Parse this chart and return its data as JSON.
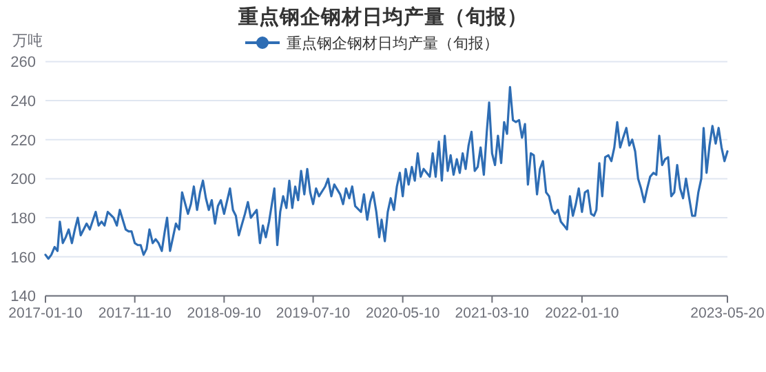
{
  "chart_data": {
    "type": "line",
    "title": "重点钢企钢材日均产量（旬报）",
    "ylabel": "万吨",
    "legend": "top",
    "grid": "y",
    "xlim": [
      "2017-01-10",
      "2023-05-20"
    ],
    "ylim": [
      140,
      260
    ],
    "yticks": [
      140,
      160,
      180,
      200,
      220,
      240,
      260
    ],
    "xticks": [
      "2017-01-10",
      "2017-11-10",
      "2018-09-10",
      "2019-07-10",
      "2020-05-10",
      "2021-03-10",
      "2022-01-10",
      "2023-05-20"
    ],
    "x": [
      "2017-01-10",
      "2017-01-20",
      "2017-01-30",
      "2017-02-10",
      "2017-02-20",
      "2017-02-28",
      "2017-03-10",
      "2017-03-20",
      "2017-03-30",
      "2017-04-10",
      "2017-04-20",
      "2017-04-30",
      "2017-05-10",
      "2017-05-20",
      "2017-05-30",
      "2017-06-10",
      "2017-06-30",
      "2017-07-10",
      "2017-07-20",
      "2017-07-30",
      "2017-08-10",
      "2017-08-30",
      "2017-09-10",
      "2017-09-20",
      "2017-10-10",
      "2017-10-20",
      "2017-10-30",
      "2017-11-10",
      "2017-11-20",
      "2017-11-30",
      "2017-12-10",
      "2017-12-20",
      "2017-12-30",
      "2018-01-10",
      "2018-01-20",
      "2018-01-30",
      "2018-02-10",
      "2018-02-20",
      "2018-02-28",
      "2018-03-10",
      "2018-03-20",
      "2018-03-30",
      "2018-04-10",
      "2018-04-20",
      "2018-05-10",
      "2018-05-20",
      "2018-05-30",
      "2018-06-10",
      "2018-06-20",
      "2018-06-30",
      "2018-07-10",
      "2018-07-20",
      "2018-07-30",
      "2018-08-10",
      "2018-08-20",
      "2018-08-30",
      "2018-09-10",
      "2018-09-30",
      "2018-10-10",
      "2018-10-20",
      "2018-10-30",
      "2018-11-20",
      "2018-11-30",
      "2018-12-10",
      "2018-12-30",
      "2019-01-10",
      "2019-01-20",
      "2019-01-30",
      "2019-02-10",
      "2019-02-28",
      "2019-03-10",
      "2019-03-20",
      "2019-03-30",
      "2019-04-10",
      "2019-04-20",
      "2019-04-30",
      "2019-05-10",
      "2019-05-20",
      "2019-05-30",
      "2019-06-10",
      "2019-06-20",
      "2019-06-30",
      "2019-07-10",
      "2019-07-20",
      "2019-07-30",
      "2019-08-20",
      "2019-08-30",
      "2019-09-10",
      "2019-09-20",
      "2019-10-10",
      "2019-10-20",
      "2019-10-30",
      "2019-11-10",
      "2019-11-20",
      "2019-11-30",
      "2019-12-20",
      "2019-12-30",
      "2020-01-10",
      "2020-01-20",
      "2020-01-30",
      "2020-02-10",
      "2020-02-20",
      "2020-02-28",
      "2020-03-10",
      "2020-03-20",
      "2020-03-30",
      "2020-04-10",
      "2020-04-20",
      "2020-04-30",
      "2020-05-10",
      "2020-05-20",
      "2020-05-30",
      "2020-06-10",
      "2020-06-20",
      "2020-06-30",
      "2020-07-10",
      "2020-07-20",
      "2020-08-10",
      "2020-08-20",
      "2020-08-30",
      "2020-09-10",
      "2020-09-20",
      "2020-09-30",
      "2020-10-10",
      "2020-10-20",
      "2020-10-30",
      "2020-11-10",
      "2020-11-20",
      "2020-11-30",
      "2020-12-10",
      "2020-12-20",
      "2020-12-30",
      "2021-01-10",
      "2021-01-20",
      "2021-01-30",
      "2021-02-10",
      "2021-02-20",
      "2021-02-28",
      "2021-03-10",
      "2021-03-20",
      "2021-03-30",
      "2021-04-10",
      "2021-04-20",
      "2021-04-30",
      "2021-05-10",
      "2021-05-20",
      "2021-05-30",
      "2021-06-10",
      "2021-06-20",
      "2021-06-30",
      "2021-07-10",
      "2021-07-20",
      "2021-07-30",
      "2021-08-10",
      "2021-08-20",
      "2021-08-30",
      "2021-09-10",
      "2021-09-20",
      "2021-09-30",
      "2021-10-10",
      "2021-10-20",
      "2021-10-30",
      "2021-11-10",
      "2021-11-20",
      "2021-11-30",
      "2021-12-10",
      "2021-12-20",
      "2021-12-30",
      "2022-01-10",
      "2022-01-20",
      "2022-01-30",
      "2022-02-10",
      "2022-02-20",
      "2022-02-28",
      "2022-03-10",
      "2022-03-20",
      "2022-03-30",
      "2022-04-10",
      "2022-04-20",
      "2022-04-30",
      "2022-05-10",
      "2022-05-20",
      "2022-05-30",
      "2022-06-10",
      "2022-06-20",
      "2022-06-30",
      "2022-07-10",
      "2022-07-20",
      "2022-07-30",
      "2022-08-10",
      "2022-08-20",
      "2022-08-30",
      "2022-09-10",
      "2022-09-20",
      "2022-09-30",
      "2022-10-10",
      "2022-10-20",
      "2022-10-30",
      "2022-11-10",
      "2022-11-20",
      "2022-11-30",
      "2022-12-10",
      "2022-12-20",
      "2022-12-30",
      "2023-01-10",
      "2023-01-20",
      "2023-01-30",
      "2023-02-10",
      "2023-02-20",
      "2023-02-28",
      "2023-03-10",
      "2023-03-20",
      "2023-03-30",
      "2023-04-10",
      "2023-04-20",
      "2023-04-30",
      "2023-05-10",
      "2023-05-20"
    ],
    "series": [
      {
        "name": "重点钢企钢材日均产量（旬报）",
        "color": "#2e6db4",
        "values": [
          161,
          159,
          161,
          165,
          163,
          178,
          167,
          170,
          174,
          167,
          174,
          180,
          171,
          174,
          177,
          174,
          183,
          176,
          178,
          176,
          183,
          180,
          176,
          184,
          174,
          173,
          173,
          167,
          166,
          166,
          161,
          164,
          174,
          167,
          169,
          167,
          163,
          173,
          180,
          163,
          170,
          177,
          174,
          193,
          182,
          187,
          196,
          184,
          193,
          199,
          190,
          184,
          189,
          177,
          186,
          189,
          182,
          195,
          184,
          181,
          171,
          182,
          188,
          180,
          184,
          167,
          176,
          170,
          178,
          195,
          166,
          183,
          191,
          185,
          199,
          185,
          196,
          189,
          204,
          192,
          205,
          193,
          187,
          195,
          191,
          196,
          200,
          191,
          197,
          192,
          187,
          195,
          190,
          196,
          186,
          183,
          192,
          179,
          188,
          193,
          183,
          170,
          179,
          168,
          183,
          190,
          184,
          196,
          203,
          191,
          205,
          197,
          206,
          199,
          213,
          201,
          205,
          201,
          213,
          201,
          219,
          199,
          222,
          204,
          212,
          202,
          210,
          203,
          213,
          205,
          217,
          224,
          204,
          206,
          216,
          202,
          224,
          239,
          213,
          207,
          222,
          208,
          229,
          223,
          247,
          230,
          229,
          230,
          221,
          228,
          197,
          213,
          212,
          192,
          205,
          209,
          193,
          191,
          184,
          182,
          184,
          178,
          176,
          174,
          191,
          181,
          187,
          195,
          183,
          193,
          194,
          182,
          181,
          184,
          208,
          191,
          211,
          212,
          209,
          216,
          229,
          216,
          221,
          226,
          217,
          220,
          214,
          200,
          195,
          188,
          195,
          201,
          203,
          202,
          222,
          207,
          210,
          211,
          191,
          193,
          207,
          195,
          190,
          200,
          190,
          181,
          181,
          193,
          200,
          226,
          203,
          217,
          227,
          218,
          226,
          216,
          209,
          214
        ]
      }
    ]
  }
}
